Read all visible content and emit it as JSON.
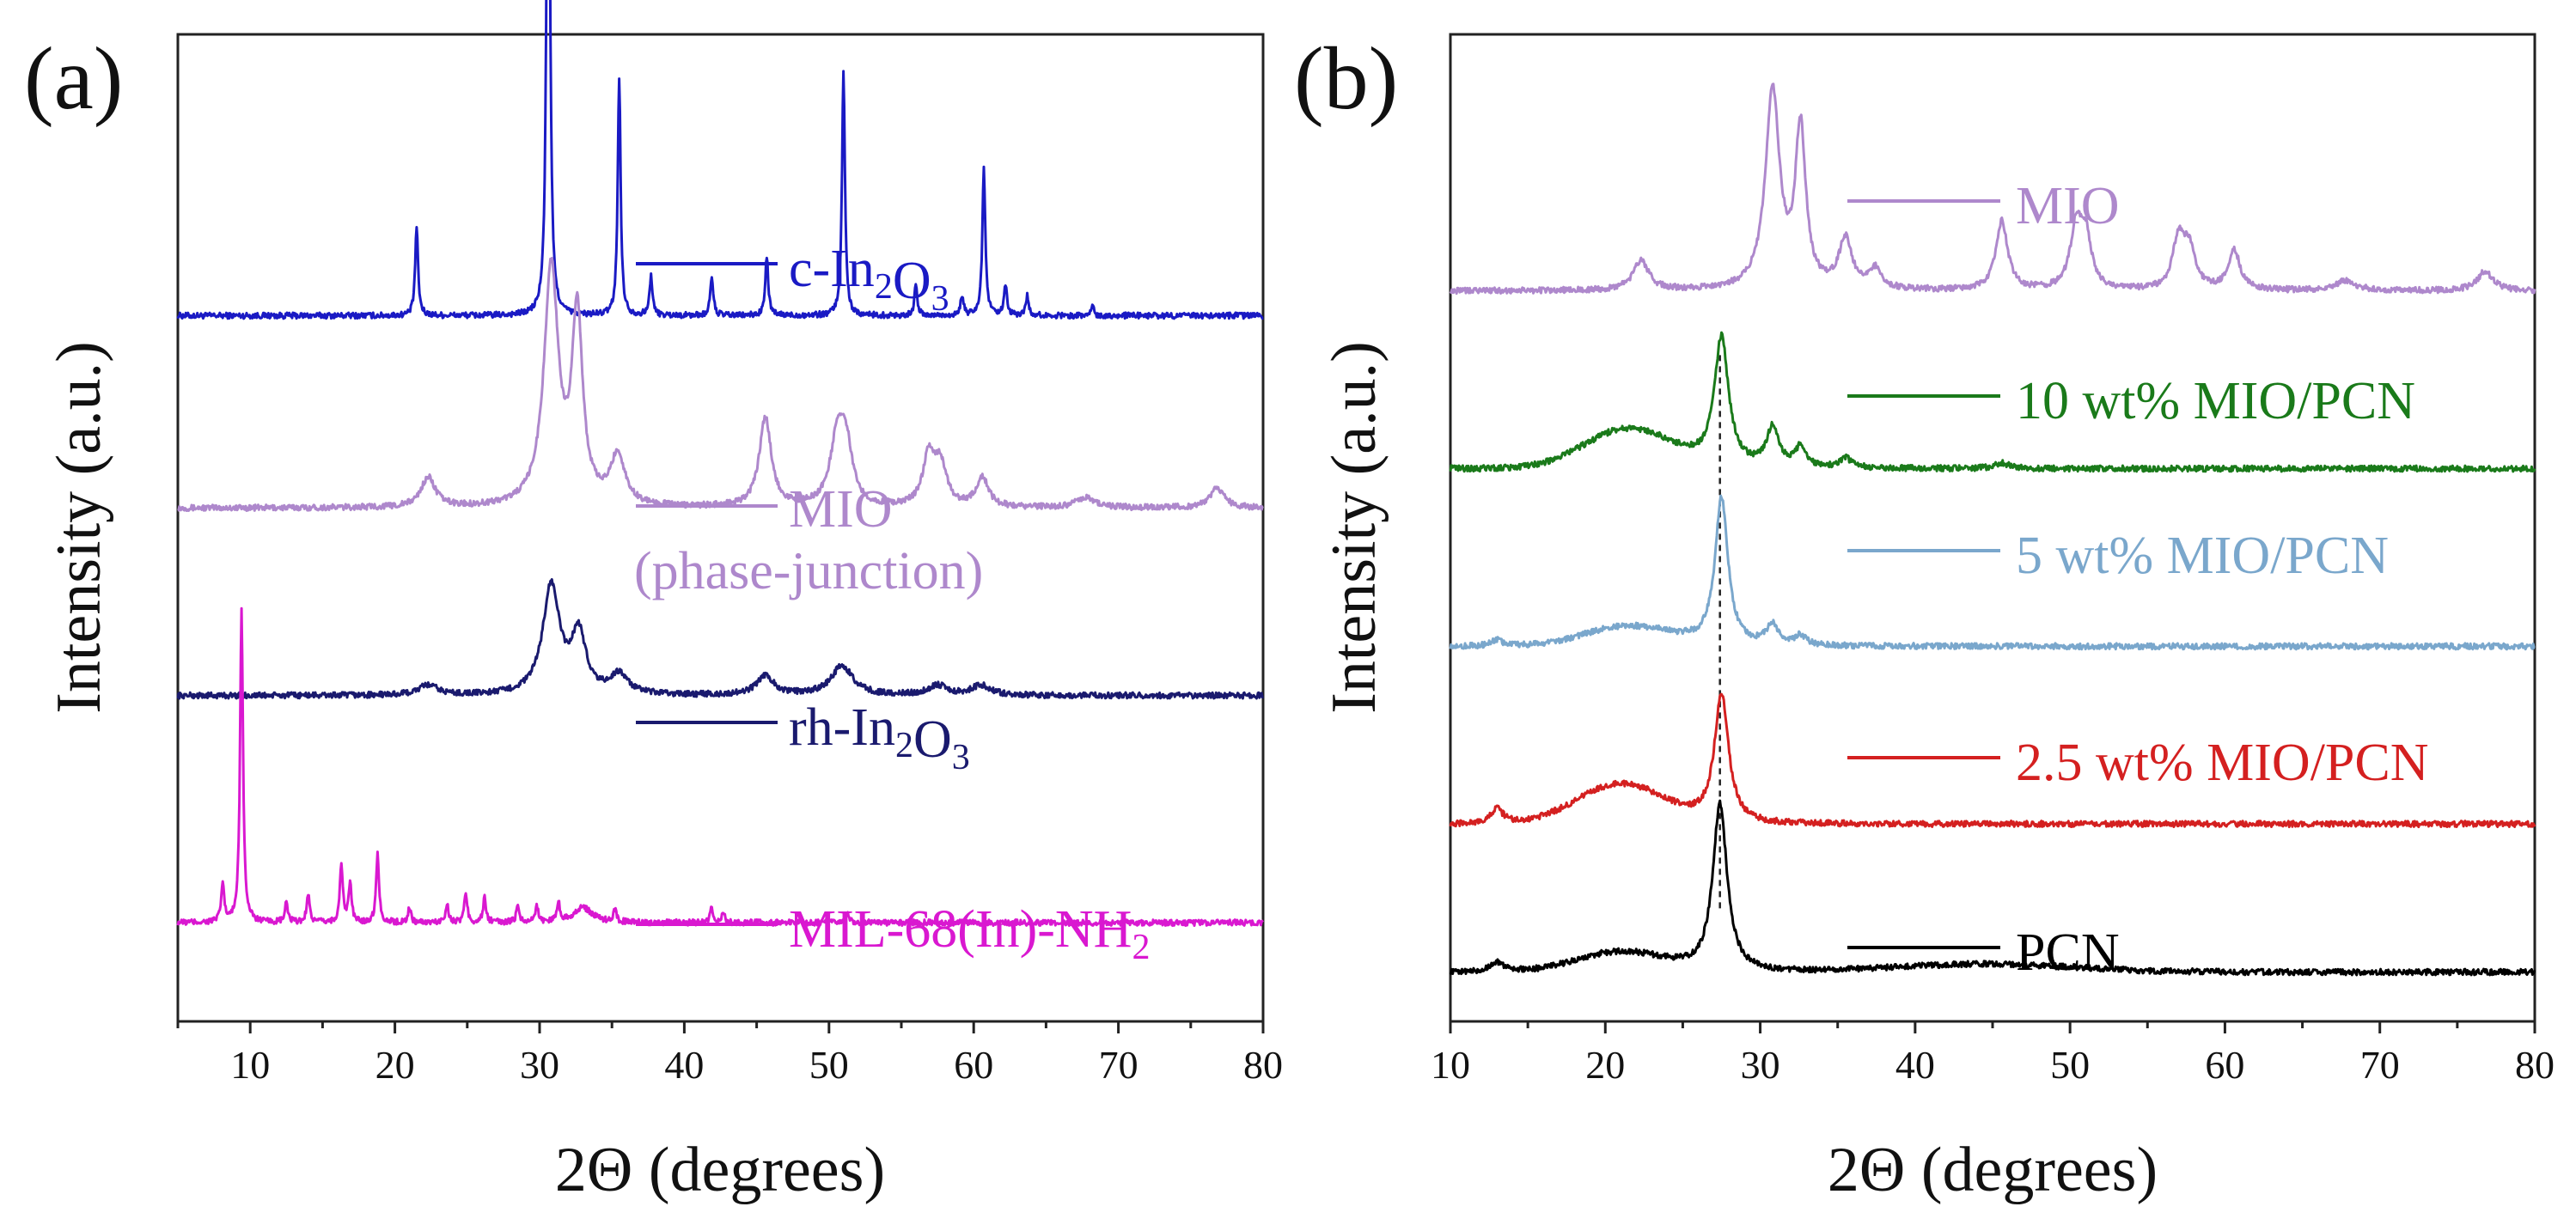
{
  "chart_data": [
    {
      "panel_label": "(a)",
      "type": "line",
      "xlabel": "2Θ (degrees)",
      "ylabel": "Intensity (a.u.)",
      "xlim": [
        5,
        80
      ],
      "xticks": [
        10,
        20,
        30,
        40,
        50,
        60,
        70,
        80
      ],
      "y_ticks_shown": false,
      "series": [
        {
          "name": "c-In2O3",
          "label_parts": [
            {
              "t": "c-In"
            },
            {
              "sub": "2"
            },
            {
              "t": "O"
            },
            {
              "sub": "3"
            }
          ],
          "color": "#1a1ac4",
          "baseline": 0.715,
          "peaks": [
            [
              21.5,
              0.09,
              0.12
            ],
            [
              30.6,
              0.75,
              0.12
            ],
            [
              35.5,
              0.24,
              0.12
            ],
            [
              37.7,
              0.04,
              0.12
            ],
            [
              41.9,
              0.04,
              0.12
            ],
            [
              45.7,
              0.06,
              0.12
            ],
            [
              51.0,
              0.25,
              0.12
            ],
            [
              56.0,
              0.03,
              0.12
            ],
            [
              59.2,
              0.02,
              0.12
            ],
            [
              60.7,
              0.15,
              0.12
            ],
            [
              62.2,
              0.03,
              0.12
            ],
            [
              63.7,
              0.02,
              0.12
            ],
            [
              68.2,
              0.01,
              0.12
            ]
          ]
        },
        {
          "name": "MIO (phase-junction)",
          "label_parts": [
            {
              "t": "MIO"
            }
          ],
          "label_line2": "(phase-junction)",
          "color": "#ae88cc",
          "baseline": 0.52,
          "peaks": [
            [
              22.3,
              0.03,
              0.6
            ],
            [
              30.8,
              0.24,
              0.6
            ],
            [
              32.6,
              0.19,
              0.45
            ],
            [
              35.4,
              0.05,
              0.6
            ],
            [
              45.6,
              0.09,
              0.5
            ],
            [
              50.6,
              0.07,
              0.6
            ],
            [
              51.2,
              0.05,
              0.5
            ],
            [
              56.9,
              0.05,
              0.5
            ],
            [
              57.7,
              0.04,
              0.5
            ],
            [
              60.6,
              0.03,
              0.5
            ],
            [
              67.7,
              0.01,
              0.8
            ],
            [
              76.8,
              0.02,
              0.6
            ]
          ]
        },
        {
          "name": "rh-In2O3",
          "label_parts": [
            {
              "t": "rh-In"
            },
            {
              "sub": "2"
            },
            {
              "t": "O"
            },
            {
              "sub": "3"
            }
          ],
          "color": "#1a1a6e",
          "baseline": 0.33,
          "peaks": [
            [
              22.3,
              0.01,
              0.8
            ],
            [
              30.8,
              0.11,
              0.7
            ],
            [
              32.7,
              0.06,
              0.6
            ],
            [
              35.5,
              0.02,
              0.7
            ],
            [
              45.6,
              0.02,
              0.7
            ],
            [
              50.9,
              0.03,
              0.9
            ],
            [
              57.5,
              0.01,
              0.8
            ],
            [
              60.5,
              0.01,
              0.8
            ]
          ]
        },
        {
          "name": "MIL-68(In)-NH2",
          "label_parts": [
            {
              "t": "MIL-68(In)-NH"
            },
            {
              "sub": "2"
            }
          ],
          "color": "#d918d0",
          "baseline": 0.1,
          "peaks": [
            [
              8.1,
              0.04,
              0.12
            ],
            [
              9.4,
              0.32,
              0.12
            ],
            [
              12.5,
              0.02,
              0.12
            ],
            [
              14.0,
              0.03,
              0.12
            ],
            [
              16.3,
              0.06,
              0.12
            ],
            [
              16.9,
              0.04,
              0.12
            ],
            [
              18.8,
              0.07,
              0.12
            ],
            [
              21.0,
              0.015,
              0.12
            ],
            [
              23.6,
              0.02,
              0.12
            ],
            [
              24.9,
              0.03,
              0.12
            ],
            [
              26.2,
              0.025,
              0.12
            ],
            [
              28.5,
              0.018,
              0.12
            ],
            [
              29.8,
              0.017,
              0.12
            ],
            [
              31.3,
              0.02,
              0.12
            ],
            [
              33.0,
              0.015,
              0.8
            ],
            [
              35.2,
              0.012,
              0.12
            ],
            [
              41.9,
              0.015,
              0.12
            ],
            [
              42.7,
              0.01,
              0.12
            ],
            [
              51.3,
              0.01,
              0.12
            ]
          ]
        }
      ]
    },
    {
      "panel_label": "(b)",
      "type": "line",
      "xlabel": "2Θ (degrees)",
      "ylabel": "Intensity (a.u.)",
      "xlim": [
        10,
        80
      ],
      "xticks": [
        10,
        20,
        30,
        40,
        50,
        60,
        70,
        80
      ],
      "y_ticks_shown": false,
      "reference_line_x": 27.4,
      "series": [
        {
          "name": "MIO",
          "label_parts": [
            {
              "t": "MIO"
            }
          ],
          "color": "#ae88cc",
          "baseline": 0.74,
          "peaks": [
            [
              22.3,
              0.03,
              0.6
            ],
            [
              30.8,
              0.2,
              0.55
            ],
            [
              32.6,
              0.16,
              0.4
            ],
            [
              35.5,
              0.05,
              0.5
            ],
            [
              37.4,
              0.02,
              0.5
            ],
            [
              45.6,
              0.07,
              0.45
            ],
            [
              50.4,
              0.06,
              0.45
            ],
            [
              51.0,
              0.05,
              0.45
            ],
            [
              57.0,
              0.05,
              0.45
            ],
            [
              57.7,
              0.04,
              0.45
            ],
            [
              60.6,
              0.04,
              0.45
            ],
            [
              67.8,
              0.01,
              0.8
            ],
            [
              76.8,
              0.02,
              0.6
            ]
          ]
        },
        {
          "name": "10 wt% MIO/PCN",
          "label_parts": [
            {
              "t": "10 wt% MIO/PCN"
            }
          ],
          "color": "#1a7a1a",
          "baseline": 0.56,
          "bumps": [
            [
              21.5,
              0.04,
              4
            ]
          ],
          "peaks": [
            [
              27.5,
              0.13,
              0.55
            ],
            [
              30.8,
              0.04,
              0.5
            ],
            [
              32.6,
              0.02,
              0.4
            ],
            [
              35.5,
              0.01,
              0.5
            ],
            [
              45.6,
              0.006,
              0.5
            ]
          ]
        },
        {
          "name": "5 wt% MIO/PCN",
          "label_parts": [
            {
              "t": "5 wt% MIO/PCN"
            }
          ],
          "color": "#7aa7cc",
          "baseline": 0.38,
          "bumps": [
            [
              21.5,
              0.02,
              4
            ]
          ],
          "peaks": [
            [
              13.0,
              0.006,
              0.5
            ],
            [
              27.5,
              0.15,
              0.5
            ],
            [
              30.8,
              0.02,
              0.5
            ],
            [
              32.6,
              0.01,
              0.4
            ]
          ]
        },
        {
          "name": "2.5 wt% MIO/PCN",
          "label_parts": [
            {
              "t": "2.5 wt% MIO/PCN"
            }
          ],
          "color": "#d42020",
          "baseline": 0.2,
          "bumps": [
            [
              21.0,
              0.04,
              4
            ]
          ],
          "peaks": [
            [
              13.0,
              0.015,
              0.5
            ],
            [
              27.5,
              0.13,
              0.55
            ]
          ]
        },
        {
          "name": "PCN",
          "label_parts": [
            {
              "t": "PCN"
            }
          ],
          "color": "#000000",
          "baseline": 0.05,
          "bumps": [
            [
              21.0,
              0.02,
              4
            ],
            [
              44.5,
              0.008,
              8
            ]
          ],
          "peaks": [
            [
              13.0,
              0.01,
              0.5
            ],
            [
              27.4,
              0.17,
              0.55
            ]
          ]
        }
      ]
    }
  ]
}
